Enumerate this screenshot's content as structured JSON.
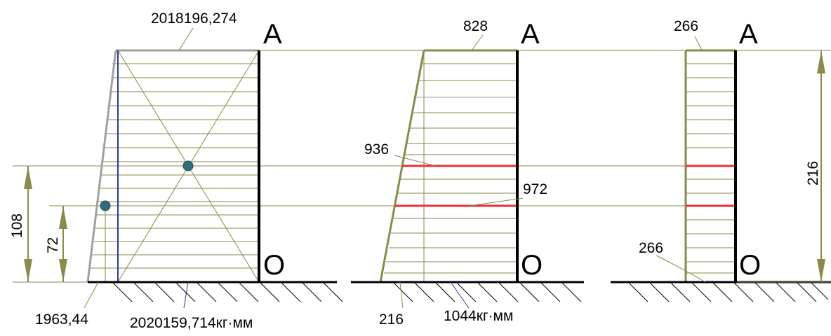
{
  "diagram": {
    "left": {
      "top_label": "2018196,274",
      "bottom_left_label": "1963,44",
      "bottom_right_label": "2020159,714кг·мм",
      "dim_outer": "108",
      "dim_inner": "72",
      "top_point": "A",
      "bottom_point": "O"
    },
    "middle": {
      "top_label": "828",
      "mid_label_1": "936",
      "mid_label_2": "972",
      "bottom_left_label": "216",
      "bottom_right_label": "1044кг·мм",
      "top_point": "A",
      "bottom_point": "O"
    },
    "right": {
      "top_label": "266",
      "bottom_label": "266",
      "dim_height": "216",
      "top_point": "A",
      "bottom_point": "O"
    },
    "colors": {
      "olive": "#8a8a4a",
      "gray": "#a0a0a0",
      "blue": "#2b3a9b",
      "red": "#e8323a",
      "black": "#000000",
      "dot": "#2f6f7a"
    }
  }
}
